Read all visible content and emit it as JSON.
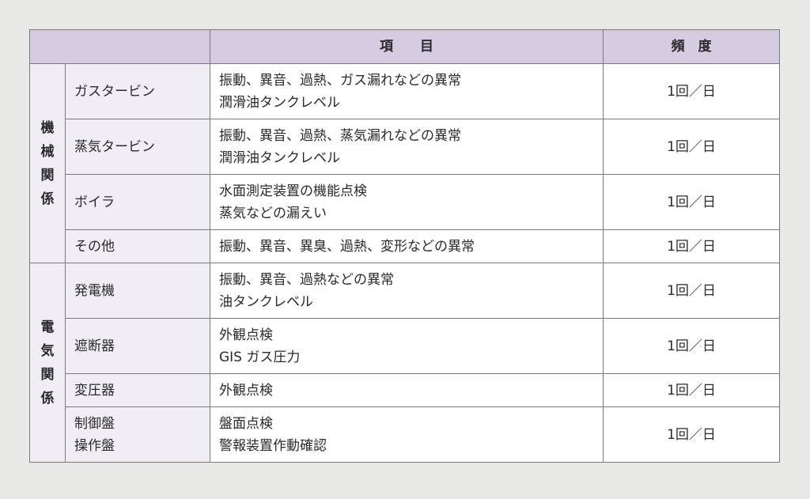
{
  "header": {
    "blank": "",
    "item": "項　　目",
    "frequency": "頻　度"
  },
  "groups": [
    {
      "category": "機械関係",
      "rows": [
        {
          "equipment": [
            "ガスタービン"
          ],
          "items": [
            "振動、異音、過熱、ガス漏れなどの異常",
            "潤滑油タンクレベル"
          ],
          "frequency": "1回／日"
        },
        {
          "equipment": [
            "蒸気タービン"
          ],
          "items": [
            "振動、異音、過熱、蒸気漏れなどの異常",
            "潤滑油タンクレベル"
          ],
          "frequency": "1回／日"
        },
        {
          "equipment": [
            "ボイラ"
          ],
          "items": [
            "水面測定装置の機能点検",
            "蒸気などの漏えい"
          ],
          "frequency": "1回／日"
        },
        {
          "equipment": [
            "その他"
          ],
          "items": [
            "振動、異音、異臭、過熱、変形などの異常"
          ],
          "frequency": "1回／日"
        }
      ]
    },
    {
      "category": "電気関係",
      "rows": [
        {
          "equipment": [
            "発電機"
          ],
          "items": [
            "振動、異音、過熱などの異常",
            "油タンクレベル"
          ],
          "frequency": "1回／日"
        },
        {
          "equipment": [
            "遮断器"
          ],
          "items": [
            "外観点検",
            "GIS ガス圧力"
          ],
          "frequency": "1回／日"
        },
        {
          "equipment": [
            "変圧器"
          ],
          "items": [
            "外観点検"
          ],
          "frequency": "1回／日"
        },
        {
          "equipment": [
            "制御盤",
            "操作盤"
          ],
          "items": [
            "盤面点検",
            "警報装置作動確認"
          ],
          "frequency": "1回／日"
        }
      ]
    }
  ]
}
